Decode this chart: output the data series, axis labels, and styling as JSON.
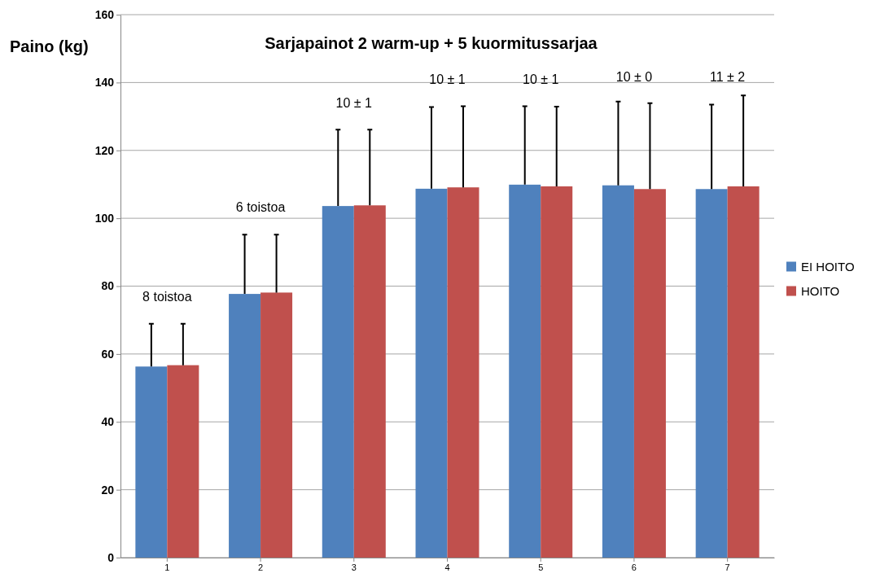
{
  "chart_data": {
    "type": "bar",
    "title": "Sarjapainot 2 warm-up + 5 kuormitussarjaa",
    "ylabel": "Paino (kg)",
    "categories": [
      "1",
      "2",
      "3",
      "4",
      "5",
      "6",
      "7"
    ],
    "series": [
      {
        "name": "EI HOITO",
        "color": "#4f81bd",
        "values": [
          56.3,
          77.7,
          103.6,
          108.7,
          109.9,
          109.7,
          108.6
        ],
        "errors": [
          [
            56.3,
            68.9
          ],
          [
            77.7,
            95.2
          ],
          [
            103.6,
            126.1
          ],
          [
            108.7,
            132.8
          ],
          [
            109.9,
            133.0
          ],
          [
            109.7,
            134.4
          ],
          [
            108.6,
            133.5
          ]
        ]
      },
      {
        "name": "HOITO",
        "color": "#c0504d",
        "values": [
          56.7,
          78.1,
          103.8,
          109.1,
          109.4,
          108.6,
          109.4
        ],
        "errors": [
          [
            56.7,
            68.9
          ],
          [
            78.1,
            95.2
          ],
          [
            103.8,
            126.1
          ],
          [
            109.1,
            133.0
          ],
          [
            109.4,
            132.9
          ],
          [
            108.6,
            133.9
          ],
          [
            109.4,
            136.2
          ]
        ]
      }
    ],
    "ylim": [
      0,
      160
    ],
    "yticks": [
      0,
      20,
      40,
      60,
      80,
      100,
      120,
      140,
      160
    ],
    "grid": "y",
    "legend": "right",
    "annotations": [
      "8 toistoa",
      "6 toistoa",
      "10 ± 1",
      "10 ± 1",
      "10 ± 1",
      "10 ± 0",
      "11 ± 2"
    ]
  }
}
